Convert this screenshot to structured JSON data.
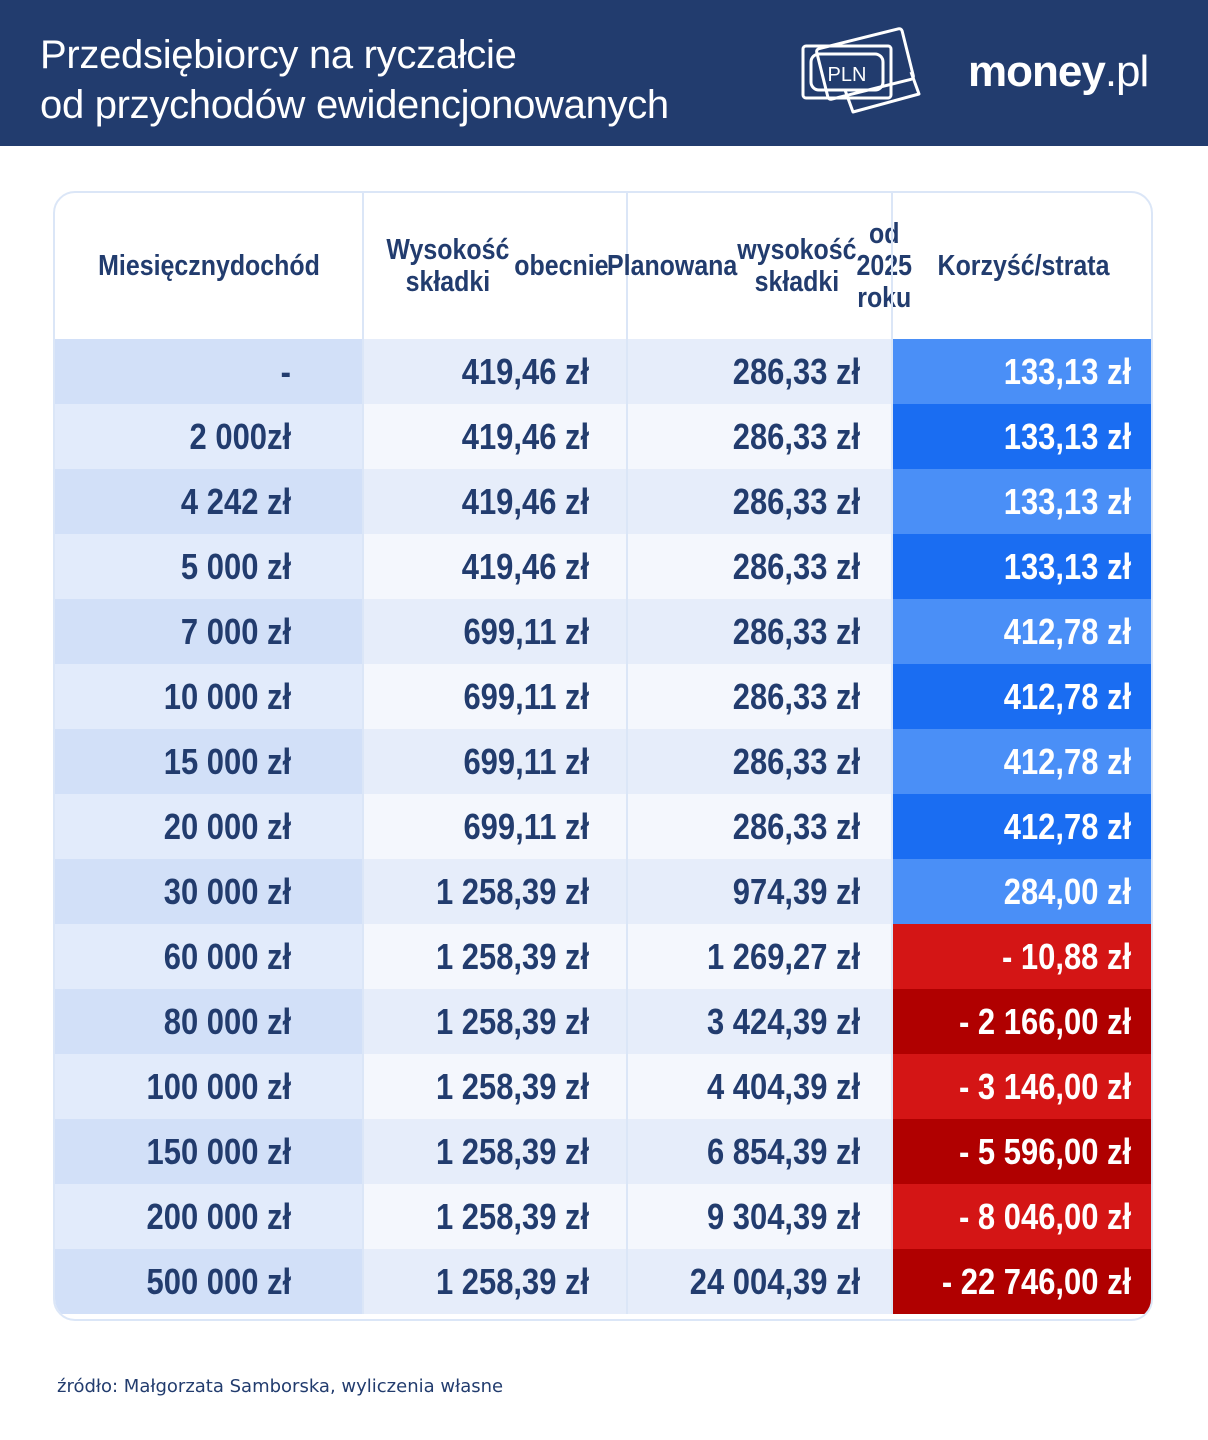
{
  "header": {
    "title_line1": "Przedsiębiorcy na ryczałcie",
    "title_line2": "od przychodów ewidencjonowanych",
    "icon_label": "PLN",
    "brand_bold": "money",
    "brand_suffix": ".pl"
  },
  "colors": {
    "header_bg": "#223c6e",
    "text_navy": "#223c6e",
    "col1_odd": "#d2e0f8",
    "col1_even": "#e2ebfb",
    "col_odd": "#e6edfa",
    "col_even": "#f4f7fd",
    "gain_light": "#4a8ff7",
    "gain_dark": "#1a6df2",
    "loss_dark": "#b00000",
    "loss_light": "#d41515"
  },
  "chart_data": {
    "type": "table",
    "columns": [
      "Miesięczny\ndochód",
      "Wysokość składki\nobecnie",
      "Planowana\nwysokość składki\nod 2025 roku",
      "Korzyść\n/strata"
    ],
    "rows": [
      [
        "-",
        "419,46 zł",
        "286,33 zł",
        "133,13 zł"
      ],
      [
        "2 000zł",
        "419,46 zł",
        "286,33 zł",
        "133,13 zł"
      ],
      [
        "4 242 zł",
        "419,46 zł",
        "286,33 zł",
        "133,13 zł"
      ],
      [
        "5 000 zł",
        "419,46 zł",
        "286,33 zł",
        "133,13 zł"
      ],
      [
        "7 000 zł",
        "699,11 zł",
        "286,33 zł",
        "412,78 zł"
      ],
      [
        "10 000 zł",
        "699,11 zł",
        "286,33 zł",
        "412,78 zł"
      ],
      [
        "15 000 zł",
        "699,11 zł",
        "286,33 zł",
        "412,78 zł"
      ],
      [
        "20 000 zł",
        "699,11 zł",
        "286,33 zł",
        "412,78 zł"
      ],
      [
        "30 000 zł",
        "1 258,39 zł",
        "974,39 zł",
        "284,00 zł"
      ],
      [
        "60 000 zł",
        "1 258,39 zł",
        "1 269,27 zł",
        "- 10,88 zł"
      ],
      [
        "80 000 zł",
        "1 258,39 zł",
        "3 424,39 zł",
        "- 2 166,00 zł"
      ],
      [
        "100 000 zł",
        "1 258,39 zł",
        "4 404,39 zł",
        "- 3 146,00 zł"
      ],
      [
        "150 000 zł",
        "1 258,39 zł",
        "6 854,39 zł",
        "- 5 596,00 zł"
      ],
      [
        "200 000 zł",
        "1 258,39 zł",
        "9 304,39 zł",
        "- 8 046,00 zł"
      ],
      [
        "500 000 zł",
        "1 258,39 zł",
        "24 004,39 zł",
        "- 22 746,00 zł"
      ]
    ],
    "gain_loss_values": [
      133.13,
      133.13,
      133.13,
      133.13,
      412.78,
      412.78,
      412.78,
      412.78,
      284.0,
      -10.88,
      -2166.0,
      -3146.0,
      -5596.0,
      -8046.0,
      -22746.0
    ]
  },
  "footer": {
    "source": "źródło: Małgorzata Samborska, wyliczenia własne"
  }
}
